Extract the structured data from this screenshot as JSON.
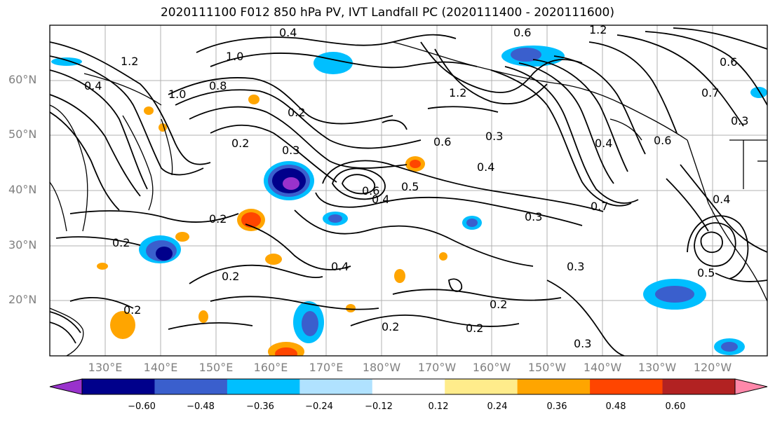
{
  "title": "2020111100 F012 850 hPa PV, IVT Landfall PC (2020111400 - 2020111600)",
  "lat_labels": [
    "60°N",
    "50°N",
    "40°N",
    "30°N",
    "20°N"
  ],
  "lon_labels": [
    "130°E",
    "140°E",
    "150°E",
    "160°E",
    "170°E",
    "180°W",
    "170°W",
    "160°W",
    "150°W",
    "140°W",
    "130°W",
    "120°W"
  ],
  "contour_labels": [
    "0.4",
    "0.6",
    "1.2",
    "1.0",
    "0.4",
    "1.2",
    "0.8",
    "0.3",
    "0.2",
    "0.2",
    "0.3",
    "0.6",
    "0.3",
    "0.4",
    "0.6",
    "0.5",
    "0.4",
    "0.4",
    "0.7",
    "0.7",
    "0.6",
    "0.3",
    "0.3",
    "0.2",
    "0.2",
    "0.4",
    "0.2",
    "0.2",
    "0.2",
    "0.2",
    "0.3",
    "0.2",
    "0.5",
    "1.2",
    "0.6",
    "1.0",
    "0.4"
  ],
  "colorbar": {
    "ticks": [
      "−0.60",
      "−0.48",
      "−0.36",
      "−0.24",
      "−0.12",
      "0.12",
      "0.24",
      "0.36",
      "0.48",
      "0.60"
    ],
    "colors": [
      "#9932cc",
      "#00008b",
      "#3a5fcd",
      "#00bfff",
      "#b0e2ff",
      "#ffffff",
      "#ffec8b",
      "#ffa500",
      "#ff4500",
      "#b22222",
      "#ff88aa"
    ]
  }
}
